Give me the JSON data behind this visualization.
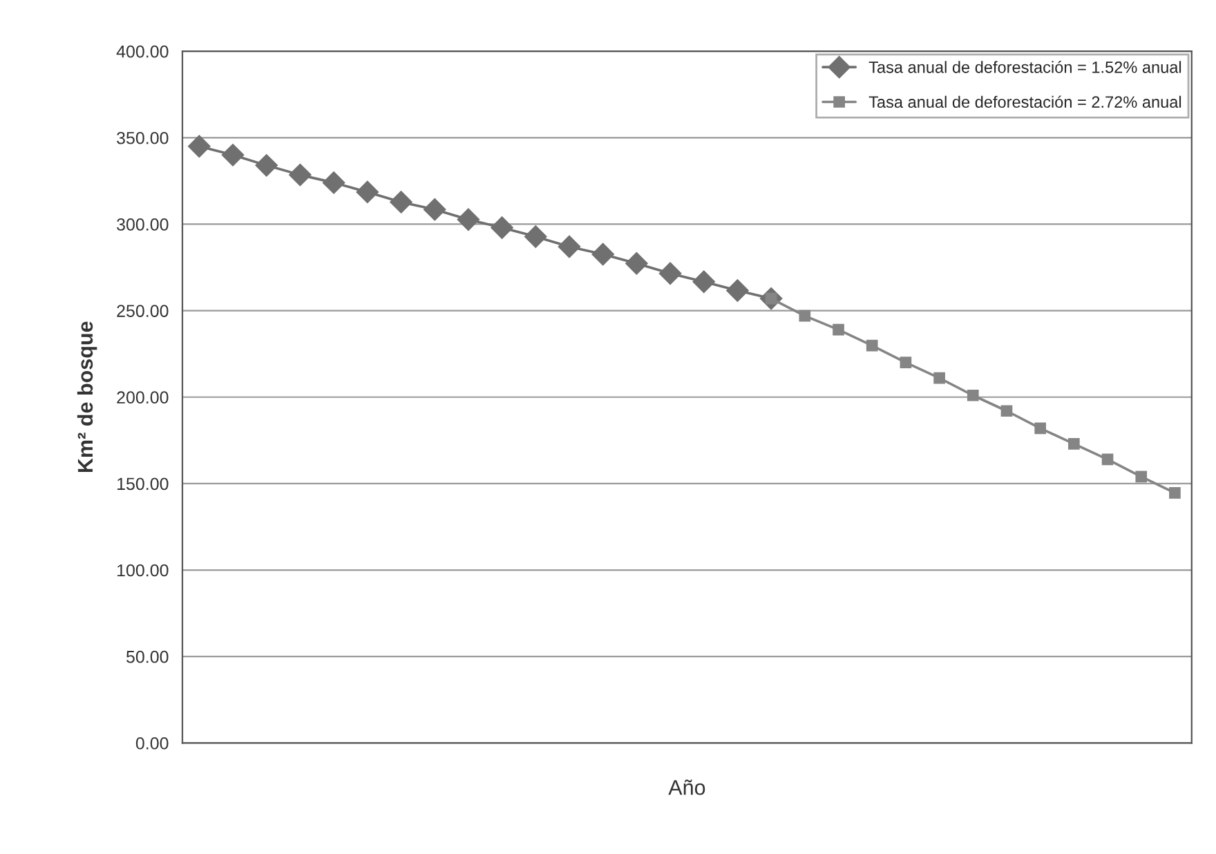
{
  "chart_data": {
    "type": "line",
    "xlabel": "Año",
    "ylabel": "Km² de bosque",
    "categories": [
      null,
      null,
      null,
      null,
      null,
      null,
      null,
      null,
      null,
      null,
      null,
      null,
      null,
      null,
      null,
      null,
      null,
      null,
      null,
      null,
      null,
      null,
      null,
      null,
      null,
      null,
      null,
      null,
      null,
      null
    ],
    "series": [
      {
        "name": "Tasa anual de deforestación = 1.52% anual",
        "color": "#707070",
        "marker": "diamond",
        "values": [
          345,
          340,
          334,
          328.5,
          324,
          318.6,
          312.8,
          308.5,
          302.7,
          298,
          292.8,
          287,
          282.6,
          277.3,
          271.5,
          266.7,
          261.6,
          257,
          null,
          null,
          null,
          null,
          null,
          null,
          null,
          null,
          null,
          null,
          null,
          null
        ]
      },
      {
        "name": "Tasa anual de deforestación = 2.72% anual",
        "color": "#858585",
        "marker": "square",
        "values": [
          null,
          null,
          null,
          null,
          null,
          null,
          null,
          null,
          null,
          null,
          null,
          null,
          null,
          null,
          null,
          null,
          null,
          257,
          247,
          239,
          229.8,
          220,
          211,
          201,
          192,
          182,
          173,
          164,
          154,
          144.6
        ]
      }
    ],
    "ylim": [
      0,
      400
    ],
    "yticks": [
      {
        "value": 0,
        "label": "0.00"
      },
      {
        "value": 50,
        "label": "50.00"
      },
      {
        "value": 100,
        "label": "100.00"
      },
      {
        "value": 150,
        "label": "150.00"
      },
      {
        "value": 200,
        "label": "200.00"
      },
      {
        "value": 250,
        "label": "250.00"
      },
      {
        "value": 300,
        "label": "300.00"
      },
      {
        "value": 350,
        "label": "350.00"
      },
      {
        "value": 400,
        "label": "400.00"
      }
    ],
    "grid": "y",
    "legend": "top right",
    "line_style": "solid"
  }
}
